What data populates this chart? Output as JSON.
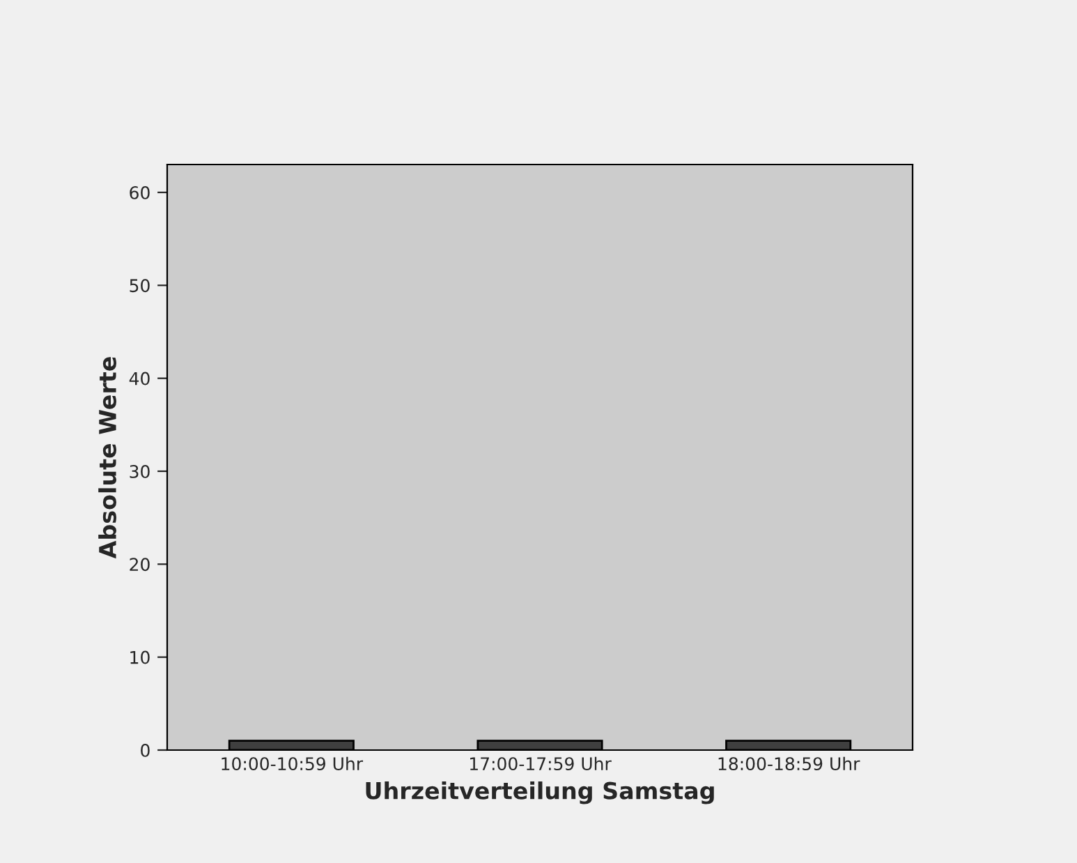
{
  "chart_data": {
    "type": "bar",
    "xlabel": "Uhrzeitverteilung Samstag",
    "ylabel": "Absolute Werte",
    "categories": [
      "10:00-10:59 Uhr",
      "17:00-17:59 Uhr",
      "18:00-18:59 Uhr"
    ],
    "values": [
      1,
      1,
      1
    ],
    "color": "#3f3f3f",
    "ylim": [
      0,
      63
    ],
    "yticks": [
      0,
      10,
      20,
      30,
      40,
      50,
      60
    ],
    "legend": false
  }
}
